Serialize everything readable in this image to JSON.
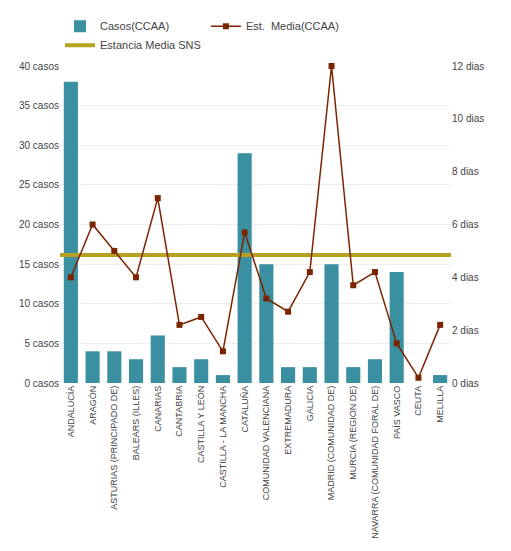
{
  "chart_data": {
    "type": "bar",
    "categories": [
      "ANDALUCÍA",
      "ARAGÓN",
      "ASTURIAS (PRINCIPADO DE)",
      "BALEARS (ILLES)",
      "CANARIAS",
      "CANTABRIA",
      "CASTILLA Y LEÓN",
      "CASTILLA - LA MANCHA",
      "CATALUÑA",
      "COMUNIDAD VALENCIANA",
      "EXTREMADURA",
      "GALICIA",
      "MADRID (COMUNIDAD DE)",
      "MURCIA (REGION DE)",
      "NAVARRA (COMUNIDAD FORAL DE)",
      "PAÍS VASCO",
      "CEUTA",
      "MELILLA"
    ],
    "series": [
      {
        "name": "Casos(CCAA)",
        "type": "bar",
        "color": "#3a8fa0",
        "values": [
          38,
          4,
          4,
          3,
          6,
          2,
          3,
          1,
          29,
          15,
          2,
          2,
          15,
          2,
          3,
          14,
          0,
          1
        ]
      },
      {
        "name": "Est.  Media(CCAA)",
        "type": "line",
        "axis": "y2",
        "color": "#7b2500",
        "marker": "square",
        "values": [
          4.0,
          6.0,
          5.0,
          4.0,
          7.0,
          2.2,
          2.5,
          1.2,
          5.7,
          3.2,
          2.7,
          4.2,
          12.0,
          3.7,
          4.2,
          1.5,
          0.2,
          2.2
        ]
      },
      {
        "name": "Estancia Media SNS",
        "type": "line",
        "axis": "y2",
        "color": "#b8a020",
        "value": 4.85
      }
    ],
    "ylim": [
      0,
      40
    ],
    "yticks": [
      {
        "value": 0,
        "label": "0 casos"
      },
      {
        "value": 5,
        "label": "5 casos"
      },
      {
        "value": 10,
        "label": "10 casos"
      },
      {
        "value": 15,
        "label": "15 casos"
      },
      {
        "value": 20,
        "label": "20 casos"
      },
      {
        "value": 25,
        "label": "25 casos"
      },
      {
        "value": 30,
        "label": "30 casos"
      },
      {
        "value": 35,
        "label": "35 casos"
      },
      {
        "value": 40,
        "label": "40 casos"
      }
    ],
    "y2lim": [
      0,
      12
    ],
    "y2ticks": [
      {
        "value": 0,
        "label": "0 dias"
      },
      {
        "value": 2,
        "label": "2 dias"
      },
      {
        "value": 4,
        "label": "4 dias"
      },
      {
        "value": 6,
        "label": "6 dias"
      },
      {
        "value": 8,
        "label": "8 dias"
      },
      {
        "value": 10,
        "label": "10 dias"
      },
      {
        "value": 12,
        "label": "12 dias"
      }
    ],
    "grid": true,
    "legend": "top"
  }
}
